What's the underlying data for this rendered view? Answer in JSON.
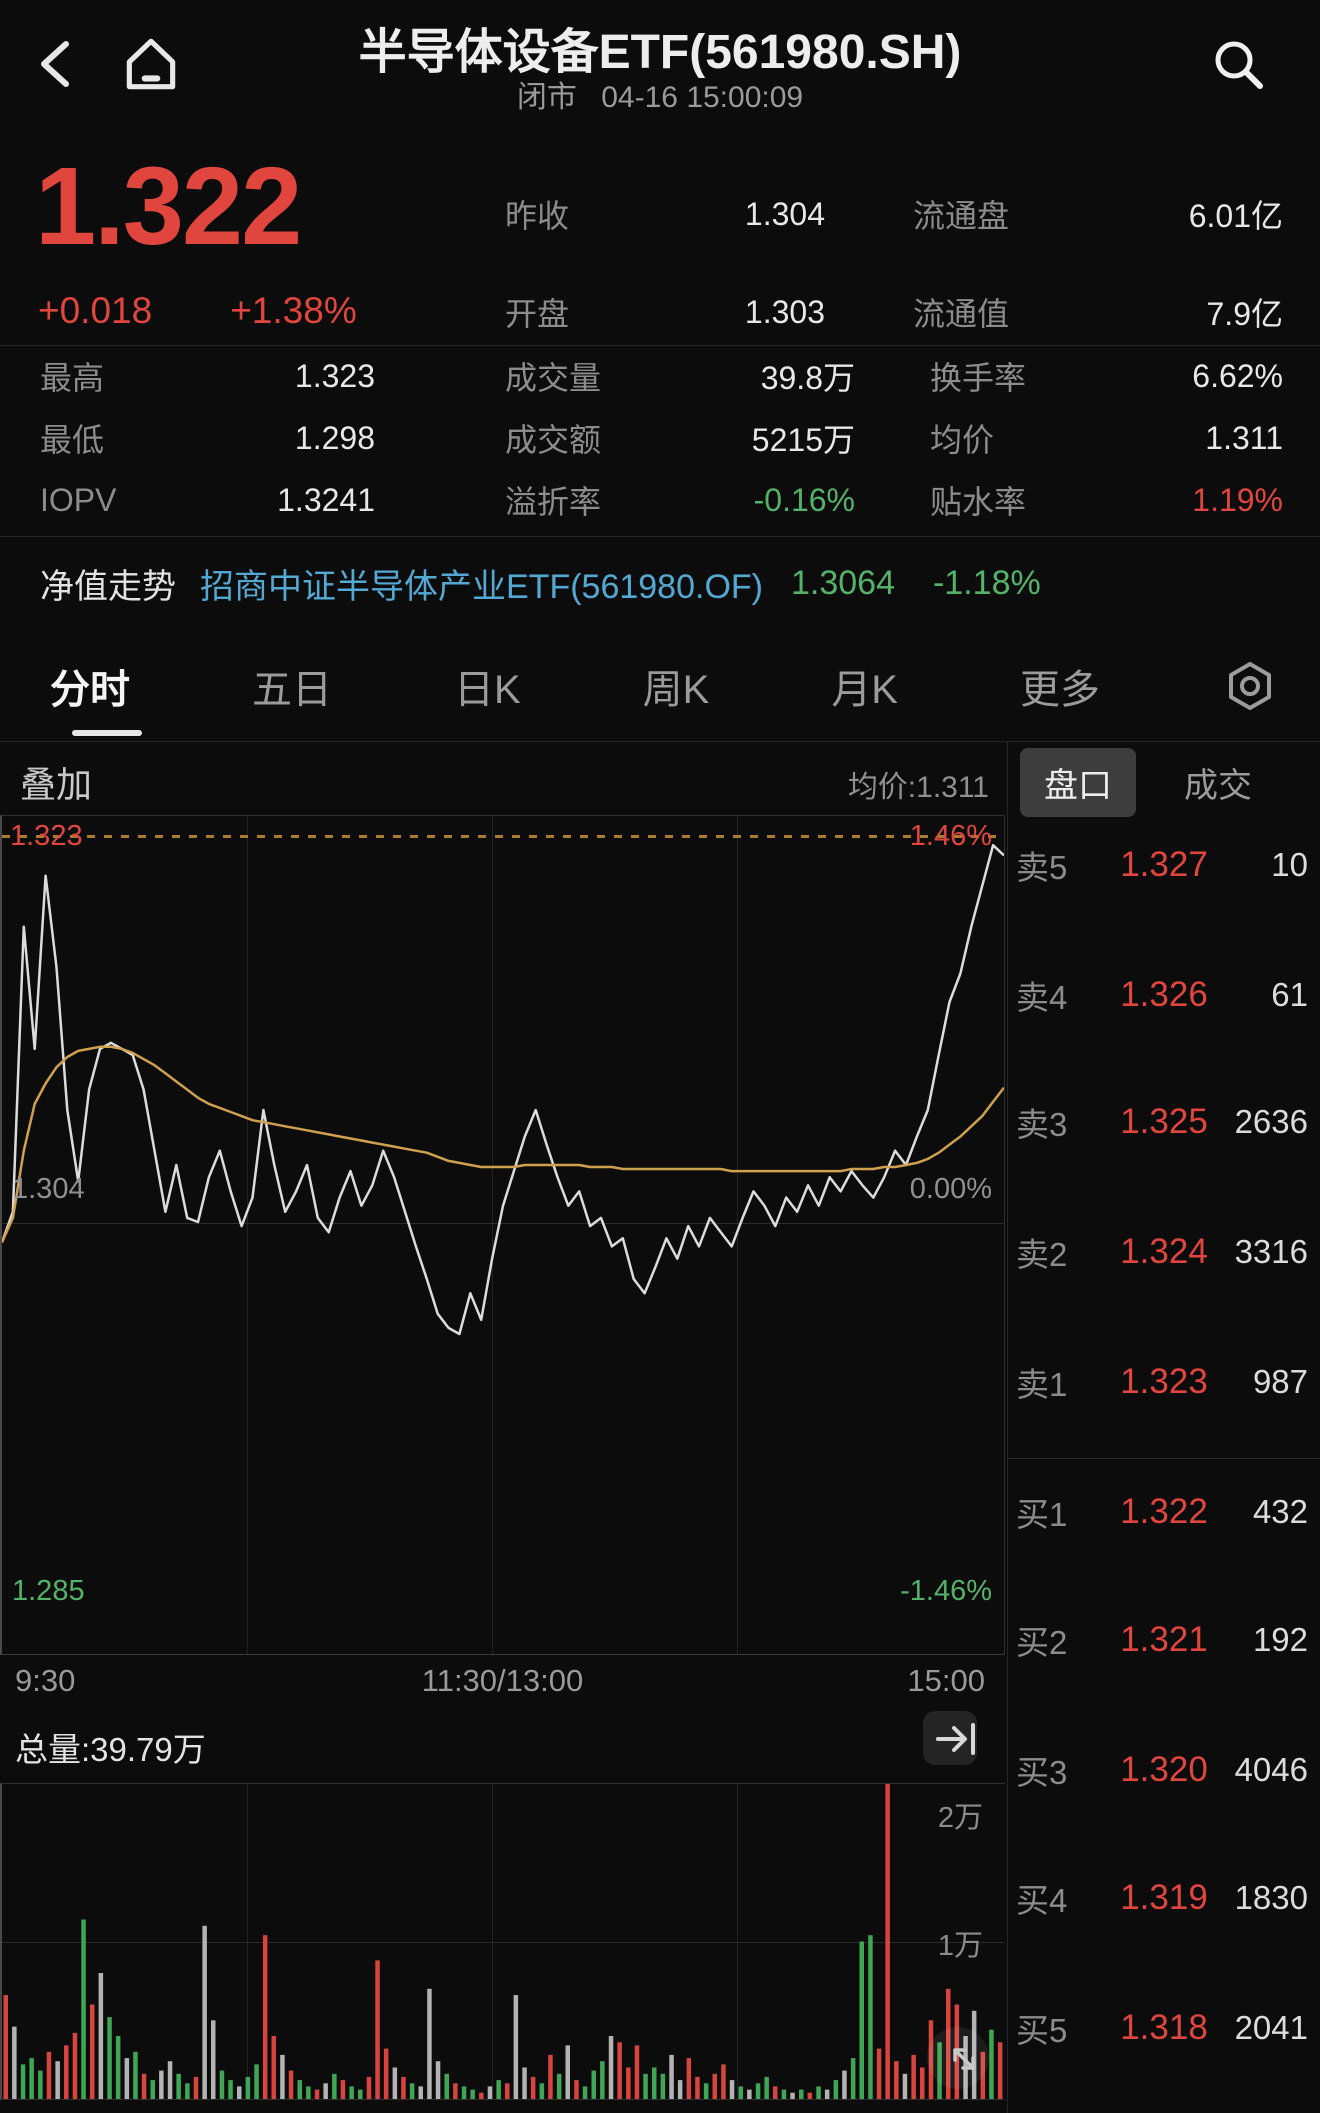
{
  "header": {
    "title": "半导体设备ETF(561980.SH)",
    "market_status": "闭市",
    "timestamp": "04-16 15:00:09"
  },
  "quote": {
    "last_price": "1.322",
    "change": "+0.018",
    "change_percent": "+1.38%",
    "top_stats": [
      {
        "label": "昨收",
        "value": "1.304"
      },
      {
        "label": "流通盘",
        "value": "6.01亿"
      },
      {
        "label": "开盘",
        "value": "1.303"
      },
      {
        "label": "流通值",
        "value": "7.9亿"
      }
    ],
    "stats": [
      [
        {
          "label": "最高",
          "value": "1.323"
        },
        {
          "label": "成交量",
          "value": "39.8万"
        },
        {
          "label": "换手率",
          "value": "6.62%"
        }
      ],
      [
        {
          "label": "最低",
          "value": "1.298"
        },
        {
          "label": "成交额",
          "value": "5215万"
        },
        {
          "label": "均价",
          "value": "1.311"
        }
      ],
      [
        {
          "label": "IOPV",
          "value": "1.3241"
        },
        {
          "label": "溢折率",
          "value": "-0.16%"
        },
        {
          "label": "贴水率",
          "value": "1.19%"
        }
      ]
    ]
  },
  "nav_row": {
    "label": "净值走势",
    "fund_name": "招商中证半导体产业ETF(561980.OF)",
    "nav": "1.3064",
    "nav_change": "-1.18%"
  },
  "period_tabs": {
    "items": [
      "分时",
      "五日",
      "日K",
      "周K",
      "月K",
      "更多"
    ],
    "active": "分时"
  },
  "chart_header": {
    "overlay_label": "叠加",
    "avg_label": "均价:1.311"
  },
  "book": {
    "tabs": [
      "盘口",
      "成交"
    ],
    "active_tab": "盘口",
    "asks": [
      {
        "level": "卖5",
        "price": "1.327",
        "volume": "10"
      },
      {
        "level": "卖4",
        "price": "1.326",
        "volume": "61"
      },
      {
        "level": "卖3",
        "price": "1.325",
        "volume": "2636"
      },
      {
        "level": "卖2",
        "price": "1.324",
        "volume": "3316"
      },
      {
        "level": "卖1",
        "price": "1.323",
        "volume": "987"
      }
    ],
    "bids": [
      {
        "level": "买1",
        "price": "1.322",
        "volume": "432"
      },
      {
        "level": "买2",
        "price": "1.321",
        "volume": "192"
      },
      {
        "level": "买3",
        "price": "1.320",
        "volume": "4046"
      },
      {
        "level": "买4",
        "price": "1.319",
        "volume": "1830"
      },
      {
        "level": "买5",
        "price": "1.318",
        "volume": "2041"
      }
    ]
  },
  "chart_data": {
    "type": "line",
    "title": "分时",
    "x_axis": [
      "9:30",
      "11:30/13:00",
      "15:00"
    ],
    "price_axis": {
      "top": "1.323",
      "mid": "1.304",
      "bottom": "1.285"
    },
    "pct_axis": {
      "top": "1.46%",
      "mid": "0.00%",
      "bottom": "-1.46%"
    },
    "y_top": 1.323,
    "y_mid": 1.304,
    "y_bottom": 1.285,
    "prev_close": 1.304,
    "grid": "quarters",
    "series": [
      {
        "name": "价格",
        "color": "#dcdcdc",
        "width": 2.5,
        "values": [
          1.303,
          1.3045,
          1.3185,
          1.3125,
          1.321,
          1.3165,
          1.3095,
          1.306,
          1.3105,
          1.3125,
          1.3128,
          1.3125,
          1.3122,
          1.3105,
          1.3075,
          1.3045,
          1.3068,
          1.3042,
          1.304,
          1.3062,
          1.3075,
          1.3055,
          1.3038,
          1.3052,
          1.3095,
          1.3068,
          1.3045,
          1.3055,
          1.3068,
          1.3042,
          1.3035,
          1.3052,
          1.3065,
          1.3048,
          1.3058,
          1.3075,
          1.3062,
          1.3045,
          1.3028,
          1.3012,
          1.2995,
          1.2988,
          1.2985,
          1.3005,
          1.2992,
          1.3022,
          1.3048,
          1.3065,
          1.3082,
          1.3095,
          1.3078,
          1.3062,
          1.3048,
          1.3055,
          1.3038,
          1.3042,
          1.3028,
          1.3032,
          1.3012,
          1.3005,
          1.3018,
          1.3032,
          1.3022,
          1.3038,
          1.3028,
          1.3042,
          1.3035,
          1.3028,
          1.3042,
          1.3055,
          1.3048,
          1.3038,
          1.3052,
          1.3045,
          1.3058,
          1.3048,
          1.3062,
          1.3055,
          1.3065,
          1.3058,
          1.3052,
          1.3062,
          1.3075,
          1.3068,
          1.3082,
          1.3095,
          1.3122,
          1.3148,
          1.3162,
          1.3185,
          1.3205,
          1.3225,
          1.322
        ]
      },
      {
        "name": "均价",
        "color": "#cfa14e",
        "width": 2.5,
        "values": [
          1.303,
          1.3042,
          1.3075,
          1.3098,
          1.3108,
          1.3116,
          1.3121,
          1.3124,
          1.3125,
          1.3126,
          1.3126,
          1.3125,
          1.3123,
          1.312,
          1.3117,
          1.3113,
          1.3109,
          1.3105,
          1.3101,
          1.3098,
          1.3096,
          1.3094,
          1.3092,
          1.309,
          1.3089,
          1.3088,
          1.3087,
          1.3086,
          1.3085,
          1.3084,
          1.3083,
          1.3082,
          1.3081,
          1.308,
          1.3079,
          1.3078,
          1.3077,
          1.3076,
          1.3075,
          1.3074,
          1.3072,
          1.307,
          1.3069,
          1.3068,
          1.3067,
          1.3067,
          1.3067,
          1.3067,
          1.3068,
          1.3068,
          1.3068,
          1.3068,
          1.3068,
          1.3068,
          1.3067,
          1.3067,
          1.3067,
          1.3066,
          1.3066,
          1.3066,
          1.3066,
          1.3066,
          1.3066,
          1.3066,
          1.3066,
          1.3066,
          1.3066,
          1.3065,
          1.3065,
          1.3065,
          1.3065,
          1.3065,
          1.3065,
          1.3065,
          1.3065,
          1.3065,
          1.3065,
          1.3065,
          1.3066,
          1.3066,
          1.3066,
          1.3067,
          1.3067,
          1.3068,
          1.3069,
          1.3071,
          1.3074,
          1.3078,
          1.3082,
          1.3087,
          1.3092,
          1.3099,
          1.3106
        ]
      }
    ],
    "volume_pane": {
      "type": "bar",
      "total_label": "总量:39.79万",
      "y_labels": [
        "2万",
        "1万"
      ],
      "colors": {
        "r": "#d8453e",
        "g": "#3ea654",
        "w": "#b3b3b3"
      },
      "bars": [
        [
          33,
          "r"
        ],
        [
          23,
          "w"
        ],
        [
          11,
          "g"
        ],
        [
          13,
          "g"
        ],
        [
          9,
          "g"
        ],
        [
          15,
          "r"
        ],
        [
          12,
          "w"
        ],
        [
          17,
          "r"
        ],
        [
          21,
          "r"
        ],
        [
          57,
          "g"
        ],
        [
          30,
          "r"
        ],
        [
          40,
          "w"
        ],
        [
          26,
          "g"
        ],
        [
          20,
          "g"
        ],
        [
          13,
          "w"
        ],
        [
          15,
          "g"
        ],
        [
          8,
          "r"
        ],
        [
          6,
          "g"
        ],
        [
          9,
          "w"
        ],
        [
          12,
          "w"
        ],
        [
          8,
          "g"
        ],
        [
          5,
          "g"
        ],
        [
          7,
          "r"
        ],
        [
          55,
          "w"
        ],
        [
          25,
          "w"
        ],
        [
          9,
          "g"
        ],
        [
          6,
          "g"
        ],
        [
          4,
          "w"
        ],
        [
          7,
          "g"
        ],
        [
          11,
          "g"
        ],
        [
          52,
          "r"
        ],
        [
          20,
          "r"
        ],
        [
          14,
          "w"
        ],
        [
          9,
          "r"
        ],
        [
          6,
          "g"
        ],
        [
          4,
          "g"
        ],
        [
          3,
          "r"
        ],
        [
          5,
          "w"
        ],
        [
          8,
          "g"
        ],
        [
          6,
          "r"
        ],
        [
          4,
          "g"
        ],
        [
          3,
          "g"
        ],
        [
          7,
          "r"
        ],
        [
          44,
          "r"
        ],
        [
          16,
          "r"
        ],
        [
          10,
          "w"
        ],
        [
          7,
          "r"
        ],
        [
          5,
          "g"
        ],
        [
          4,
          "w"
        ],
        [
          35,
          "w"
        ],
        [
          12,
          "w"
        ],
        [
          8,
          "g"
        ],
        [
          5,
          "r"
        ],
        [
          4,
          "g"
        ],
        [
          3,
          "g"
        ],
        [
          2,
          "r"
        ],
        [
          4,
          "w"
        ],
        [
          6,
          "g"
        ],
        [
          5,
          "r"
        ],
        [
          33,
          "w"
        ],
        [
          10,
          "w"
        ],
        [
          7,
          "r"
        ],
        [
          5,
          "g"
        ],
        [
          14,
          "r"
        ],
        [
          8,
          "g"
        ],
        [
          17,
          "w"
        ],
        [
          6,
          "r"
        ],
        [
          4,
          "g"
        ],
        [
          9,
          "g"
        ],
        [
          12,
          "g"
        ],
        [
          20,
          "w"
        ],
        [
          18,
          "r"
        ],
        [
          10,
          "r"
        ],
        [
          17,
          "r"
        ],
        [
          8,
          "g"
        ],
        [
          10,
          "g"
        ],
        [
          8,
          "g"
        ],
        [
          14,
          "w"
        ],
        [
          6,
          "w"
        ],
        [
          13,
          "r"
        ],
        [
          7,
          "r"
        ],
        [
          5,
          "g"
        ],
        [
          8,
          "r"
        ],
        [
          11,
          "r"
        ],
        [
          6,
          "w"
        ],
        [
          4,
          "g"
        ],
        [
          3,
          "w"
        ],
        [
          5,
          "g"
        ],
        [
          7,
          "g"
        ],
        [
          4,
          "r"
        ],
        [
          3,
          "g"
        ],
        [
          2,
          "w"
        ],
        [
          3,
          "g"
        ],
        [
          2,
          "r"
        ],
        [
          4,
          "g"
        ],
        [
          3,
          "w"
        ],
        [
          6,
          "g"
        ],
        [
          9,
          "w"
        ],
        [
          13,
          "g"
        ],
        [
          50,
          "g"
        ],
        [
          52,
          "g"
        ],
        [
          16,
          "r"
        ],
        [
          100,
          "r"
        ],
        [
          12,
          "r"
        ],
        [
          8,
          "w"
        ],
        [
          14,
          "r"
        ],
        [
          10,
          "r"
        ],
        [
          25,
          "r"
        ],
        [
          18,
          "g"
        ],
        [
          35,
          "r"
        ],
        [
          30,
          "r"
        ],
        [
          20,
          "w"
        ],
        [
          28,
          "w"
        ],
        [
          15,
          "r"
        ],
        [
          22,
          "g"
        ],
        [
          18,
          "r"
        ]
      ]
    }
  }
}
